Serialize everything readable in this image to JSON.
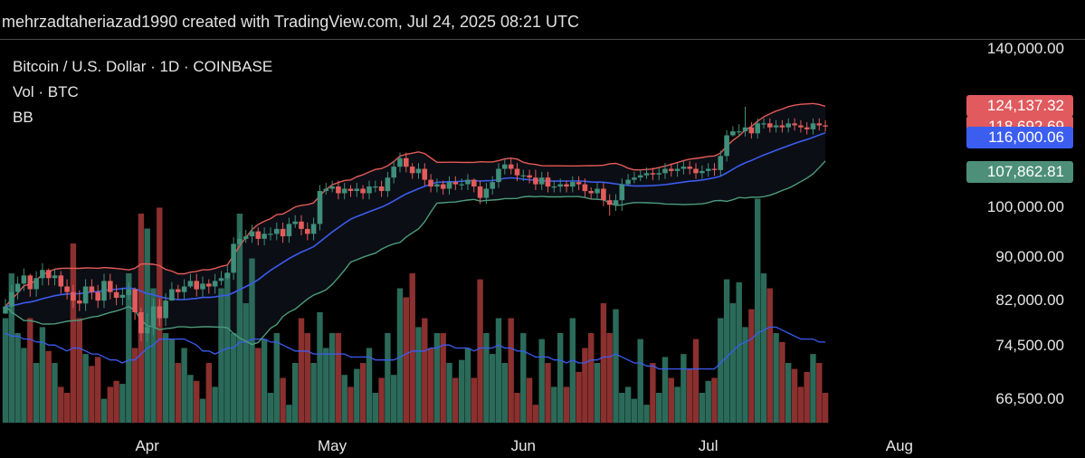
{
  "header": {
    "text": "mehrzadtaheriazad1990 created with TradingView.com, Jul 24, 2025 08:21 UTC"
  },
  "legend": {
    "symbol": "Bitcoin / U.S. Dollar · 1D · COINBASE",
    "volume": "Vol · BTC",
    "bb": "BB"
  },
  "colors": {
    "up": "#3f8f7a",
    "down": "#e25c5c",
    "upper_band": "#e45a57",
    "middle_band": "#3b5cf0",
    "lower_band": "#4d9b7c",
    "band_fill": "#0b0e14",
    "vol_up": "#2b6a59",
    "vol_down": "#8a302f",
    "vol_ma": "#3b5cf0"
  },
  "price_tags": [
    {
      "label": "124,137.32",
      "value": 124137.32,
      "color": "#e05a5e"
    },
    {
      "label": "118,692.69",
      "value": 118692.69,
      "color": "#e05a5e"
    },
    {
      "label": "116,000.06",
      "value": 116000.06,
      "color": "#3c5ef0"
    },
    {
      "label": "107,862.81",
      "value": 107862.81,
      "color": "#4d8f79"
    }
  ],
  "chart_data": {
    "type": "candlestick",
    "scale": "log",
    "x_axis": {
      "labels": [
        "Apr",
        "May",
        "Jun",
        "Jul",
        "Aug"
      ],
      "label_dates": [
        "2025-04-01",
        "2025-05-01",
        "2025-06-01",
        "2025-07-01",
        "2025-08-01"
      ],
      "range": [
        "2025-03-09",
        "2025-08-11"
      ]
    },
    "y_axis": {
      "ticks": [
        140000,
        100000,
        90000,
        82000,
        74500,
        66500
      ],
      "tick_labels": [
        "140,000.00",
        "100,000.00",
        "90,000.00",
        "82,000.00",
        "74,500.00",
        "66,500.00"
      ],
      "range": [
        63000,
        150000
      ]
    },
    "candles": {
      "start_date": "2025-03-09",
      "closes": [
        81000,
        83500,
        85000,
        86500,
        84000,
        86000,
        87500,
        86000,
        86500,
        84500,
        83500,
        82000,
        81500,
        84500,
        83500,
        82000,
        85500,
        83500,
        82500,
        83000,
        84000,
        80000,
        76500,
        77500,
        81000,
        79000,
        82000,
        84000,
        83500,
        84500,
        85500,
        84000,
        85000,
        84500,
        85500,
        86000,
        87000,
        92500,
        93500,
        94000,
        95000,
        93500,
        94500,
        94500,
        95500,
        94000,
        96500,
        97000,
        95500,
        94500,
        96500,
        103500,
        104000,
        104500,
        103000,
        104000,
        103500,
        104000,
        103000,
        104500,
        104500,
        103500,
        106500,
        109000,
        111000,
        109000,
        107500,
        108500,
        106000,
        104500,
        105000,
        104000,
        105500,
        105000,
        105000,
        106000,
        104500,
        102000,
        104000,
        105500,
        108500,
        109500,
        108500,
        107000,
        107000,
        106500,
        105000,
        106500,
        104500,
        104500,
        105000,
        104500,
        105500,
        105000,
        103500,
        103000,
        104000,
        101500,
        100500,
        101500,
        105000,
        106000,
        106500,
        107000,
        107500,
        107200,
        107500,
        108500,
        108000,
        108500,
        109000,
        108500,
        107500,
        108000,
        108500,
        108200,
        111500,
        116500,
        117500,
        117500,
        118500,
        117000,
        119500,
        119500,
        118500,
        119000,
        118500,
        119500,
        119000,
        118500,
        118000,
        119500,
        119000,
        118700
      ],
      "highs": [
        82300,
        84800,
        86300,
        87800,
        86800,
        87300,
        88800,
        87800,
        87800,
        87300,
        85800,
        84800,
        83800,
        85800,
        85800,
        84800,
        86800,
        86800,
        84800,
        84300,
        85300,
        84300,
        80800,
        79800,
        82300,
        82300,
        83300,
        85300,
        84800,
        85800,
        86800,
        86800,
        86300,
        85800,
        86800,
        87300,
        88300,
        93800,
        94800,
        95300,
        96300,
        95800,
        95800,
        95800,
        96800,
        96800,
        97800,
        98300,
        98300,
        96800,
        97800,
        104800,
        105300,
        105800,
        105800,
        105300,
        104800,
        105300,
        104800,
        105800,
        105800,
        105800,
        107800,
        110300,
        112300,
        112300,
        109800,
        109800,
        109800,
        107300,
        106300,
        105800,
        106800,
        106800,
        106300,
        107300,
        106300,
        105800,
        105300,
        106800,
        109800,
        110800,
        110800,
        109800,
        108300,
        108300,
        108300,
        107800,
        107800,
        105800,
        106300,
        105800,
        106800,
        106800,
        106300,
        104300,
        105300,
        105300,
        102800,
        102800,
        106300,
        107300,
        107800,
        108300,
        108800,
        108800,
        108800,
        109800,
        109800,
        109800,
        110300,
        110300,
        109800,
        109300,
        109800,
        109800,
        112800,
        117800,
        118800,
        119300,
        123800,
        119800,
        120800,
        120800,
        120800,
        120300,
        120300,
        120800,
        120800,
        120300,
        119800,
        120800,
        120800,
        120300
      ],
      "lows": [
        79700,
        79700,
        82200,
        83700,
        82700,
        82700,
        84700,
        84700,
        84700,
        83200,
        82200,
        80700,
        80200,
        80200,
        82200,
        80700,
        80700,
        82200,
        81200,
        81200,
        82200,
        78700,
        75200,
        75200,
        76200,
        77700,
        77700,
        82700,
        82200,
        82200,
        84200,
        82700,
        82700,
        83200,
        83200,
        84700,
        85700,
        85700,
        92200,
        92700,
        92700,
        92200,
        92200,
        93200,
        93200,
        92700,
        92700,
        95700,
        94200,
        93200,
        93200,
        95200,
        102700,
        103200,
        101700,
        101700,
        102200,
        102200,
        101700,
        101700,
        103200,
        102200,
        102200,
        105200,
        107700,
        107700,
        106200,
        106200,
        104700,
        103200,
        103200,
        102700,
        102700,
        103700,
        103700,
        103700,
        103200,
        100700,
        100700,
        102700,
        104200,
        107200,
        107200,
        105700,
        105700,
        105200,
        103700,
        103700,
        103200,
        103200,
        103200,
        103200,
        103200,
        103700,
        102200,
        101700,
        101700,
        100200,
        98200,
        99200,
        99200,
        104700,
        105200,
        105700,
        106200,
        105900,
        105900,
        106200,
        106700,
        106700,
        107200,
        107200,
        106200,
        106200,
        106700,
        106900,
        106900,
        110200,
        116200,
        116200,
        116200,
        115700,
        115700,
        118200,
        117200,
        117200,
        117200,
        117200,
        117700,
        117200,
        116700,
        116700,
        117700,
        117400
      ],
      "vol_ma_start": 66900,
      "volumes": [
        0.35,
        0.5,
        0.3,
        0.25,
        0.35,
        0.2,
        0.32,
        0.24,
        0.2,
        0.12,
        0.1,
        0.6,
        0.35,
        0.23,
        0.19,
        0.22,
        0.08,
        0.12,
        0.14,
        0.13,
        0.5,
        0.25,
        0.7,
        0.65,
        0.45,
        0.72,
        0.3,
        0.28,
        0.2,
        0.25,
        0.16,
        0.14,
        0.08,
        0.2,
        0.12,
        0.45,
        0.5,
        0.3,
        0.7,
        0.4,
        0.55,
        0.25,
        0.28,
        0.1,
        0.3,
        0.15,
        0.06,
        0.2,
        0.35,
        0.3,
        0.2,
        0.37,
        0.25,
        0.3,
        0.3,
        0.16,
        0.12,
        0.18,
        0.2,
        0.25,
        0.1,
        0.15,
        0.3,
        0.16,
        0.45,
        0.42,
        0.5,
        0.32,
        0.35,
        0.25,
        0.3,
        0.3,
        0.2,
        0.15,
        0.21,
        0.25,
        0.15,
        0.48,
        0.3,
        0.23,
        0.35,
        0.2,
        0.35,
        0.1,
        0.3,
        0.15,
        0.06,
        0.28,
        0.2,
        0.12,
        0.3,
        0.12,
        0.35,
        0.17,
        0.25,
        0.3,
        0.2,
        0.4,
        0.3,
        0.38,
        0.1,
        0.12,
        0.08,
        0.28,
        0.06,
        0.2,
        0.1,
        0.22,
        0.15,
        0.12,
        0.23,
        0.18,
        0.28,
        0.1,
        0.14,
        0.15,
        0.35,
        0.48,
        0.4,
        0.47,
        0.32,
        0.38,
        0.75,
        0.5,
        0.45,
        0.3,
        0.27,
        0.2,
        0.18,
        0.12,
        0.17,
        0.23,
        0.2,
        0.1
      ],
      "vol_ma": [
        0.3,
        0.29,
        0.29,
        0.28,
        0.28,
        0.27,
        0.27,
        0.26,
        0.26,
        0.25,
        0.24,
        0.25,
        0.25,
        0.24,
        0.23,
        0.23,
        0.22,
        0.21,
        0.21,
        0.2,
        0.21,
        0.21,
        0.23,
        0.25,
        0.26,
        0.28,
        0.28,
        0.28,
        0.28,
        0.28,
        0.27,
        0.26,
        0.24,
        0.24,
        0.23,
        0.24,
        0.25,
        0.25,
        0.27,
        0.27,
        0.28,
        0.28,
        0.28,
        0.27,
        0.27,
        0.26,
        0.25,
        0.24,
        0.24,
        0.24,
        0.23,
        0.23,
        0.23,
        0.23,
        0.23,
        0.23,
        0.22,
        0.22,
        0.22,
        0.22,
        0.21,
        0.21,
        0.21,
        0.21,
        0.22,
        0.23,
        0.24,
        0.24,
        0.24,
        0.25,
        0.25,
        0.26,
        0.26,
        0.25,
        0.25,
        0.25,
        0.24,
        0.25,
        0.25,
        0.25,
        0.26,
        0.25,
        0.25,
        0.24,
        0.24,
        0.23,
        0.22,
        0.22,
        0.22,
        0.21,
        0.21,
        0.2,
        0.21,
        0.2,
        0.2,
        0.21,
        0.21,
        0.22,
        0.22,
        0.23,
        0.22,
        0.21,
        0.2,
        0.2,
        0.19,
        0.19,
        0.18,
        0.18,
        0.18,
        0.18,
        0.18,
        0.18,
        0.18,
        0.18,
        0.18,
        0.18,
        0.2,
        0.22,
        0.24,
        0.26,
        0.27,
        0.28,
        0.3,
        0.31,
        0.32,
        0.32,
        0.31,
        0.3,
        0.29,
        0.28,
        0.28,
        0.28,
        0.27,
        0.27
      ]
    }
  }
}
